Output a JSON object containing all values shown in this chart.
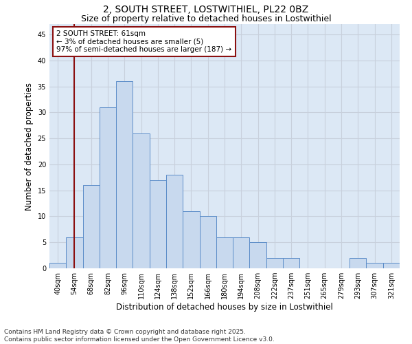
{
  "title_line1": "2, SOUTH STREET, LOSTWITHIEL, PL22 0BZ",
  "title_line2": "Size of property relative to detached houses in Lostwithiel",
  "xlabel": "Distribution of detached houses by size in Lostwithiel",
  "ylabel": "Number of detached properties",
  "bin_labels": [
    "40sqm",
    "54sqm",
    "68sqm",
    "82sqm",
    "96sqm",
    "110sqm",
    "124sqm",
    "138sqm",
    "152sqm",
    "166sqm",
    "180sqm",
    "194sqm",
    "208sqm",
    "222sqm",
    "237sqm",
    "251sqm",
    "265sqm",
    "279sqm",
    "293sqm",
    "307sqm",
    "321sqm"
  ],
  "bar_values": [
    1,
    6,
    16,
    31,
    36,
    26,
    17,
    18,
    11,
    10,
    6,
    6,
    5,
    2,
    2,
    0,
    0,
    0,
    2,
    1,
    1
  ],
  "bar_color": "#c8d9ee",
  "bar_edge_color": "#5b8cc8",
  "ylim": [
    0,
    47
  ],
  "yticks": [
    0,
    5,
    10,
    15,
    20,
    25,
    30,
    35,
    40,
    45
  ],
  "grid_color": "#c8d0dc",
  "bg_color": "#dce8f5",
  "vline_color": "#8b1010",
  "annotation_text": "2 SOUTH STREET: 61sqm\n← 3% of detached houses are smaller (5)\n97% of semi-detached houses are larger (187) →",
  "annotation_box_color": "#ffffff",
  "annotation_box_edge": "#8b1010",
  "footer_line1": "Contains HM Land Registry data © Crown copyright and database right 2025.",
  "footer_line2": "Contains public sector information licensed under the Open Government Licence v3.0.",
  "title_fontsize": 10,
  "subtitle_fontsize": 9,
  "axis_label_fontsize": 8.5,
  "tick_fontsize": 7,
  "footer_fontsize": 6.5,
  "annotation_fontsize": 7.5
}
